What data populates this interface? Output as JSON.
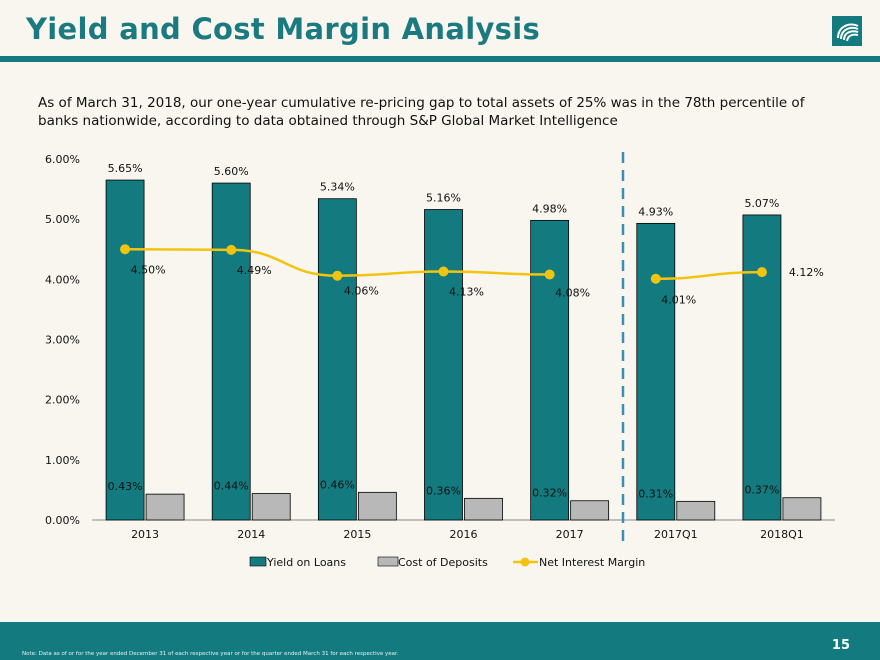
{
  "header": {
    "title": "Yield and Cost Margin Analysis",
    "logo_icon": "wave-logo-icon"
  },
  "intro_text": "As of March 31, 2018, our one-year cumulative re-pricing gap to total assets of 25% was in the 78th percentile of banks nationwide, according to data obtained through S&P Global Market Intelligence",
  "footer": {
    "page_number": "15",
    "note": "Note: Data as of or for the year ended December 31 of each respective year or for the quarter ended March 31 for each respective year."
  },
  "colors": {
    "teal": "#137b80",
    "gray": "#b8b8b8",
    "yellow": "#f2c40f",
    "divider": "#3a8fb0"
  },
  "chart_data": {
    "type": "bar",
    "categories": [
      "2013",
      "2014",
      "2015",
      "2016",
      "2017",
      "2017Q1",
      "2018Q1"
    ],
    "ylim": [
      0,
      6
    ],
    "y_ticks": [
      "0.00%",
      "1.00%",
      "2.00%",
      "3.00%",
      "4.00%",
      "5.00%",
      "6.00%"
    ],
    "legend_position": "bottom",
    "grid": false,
    "series": [
      {
        "name": "Yield on Loans",
        "type": "bar",
        "color": "#137b80",
        "values": [
          5.65,
          5.6,
          5.34,
          5.16,
          4.98,
          4.93,
          5.07
        ],
        "labels": [
          "5.65%",
          "5.60%",
          "5.34%",
          "5.16%",
          "4.98%",
          "4.93%",
          "5.07%"
        ]
      },
      {
        "name": "Cost of Deposits",
        "type": "bar",
        "color": "#b8b8b8",
        "values": [
          0.43,
          0.44,
          0.46,
          0.36,
          0.32,
          0.31,
          0.37
        ],
        "labels": [
          "0.43%",
          "0.44%",
          "0.46%",
          "0.36%",
          "0.32%",
          "0.31%",
          "0.37%"
        ]
      },
      {
        "name": "Net Interest Margin",
        "type": "line",
        "color": "#f2c40f",
        "values": [
          4.5,
          4.49,
          4.06,
          4.13,
          4.08,
          4.01,
          4.12
        ],
        "labels": [
          "4.50%",
          "4.49%",
          "4.06%",
          "4.13%",
          "4.08%",
          "4.01%",
          "4.12%"
        ]
      }
    ]
  }
}
